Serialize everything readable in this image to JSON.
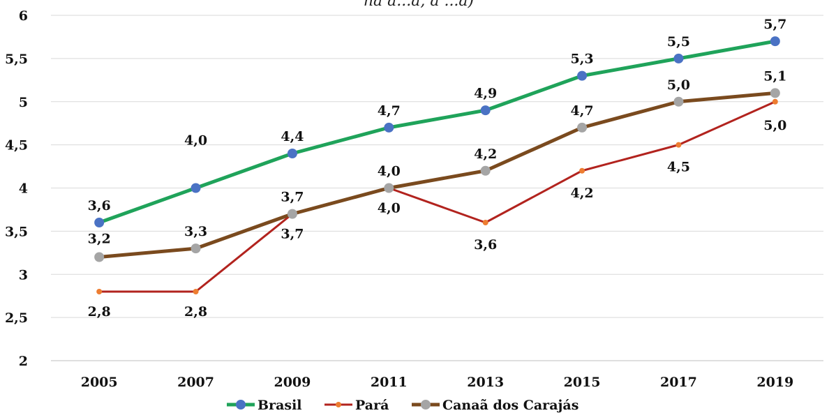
{
  "chart_data": {
    "type": "line",
    "title": "",
    "title_fragment": "na a...a, a ...a)",
    "xlabel": "",
    "ylabel": "",
    "categories": [
      "2005",
      "2007",
      "2009",
      "2011",
      "2013",
      "2015",
      "2017",
      "2019"
    ],
    "ylim": [
      2,
      6
    ],
    "yticks": [
      "2",
      "2,5",
      "3",
      "3,5",
      "4",
      "4,5",
      "5",
      "5,5",
      "6"
    ],
    "grid": true,
    "legend_position": "bottom",
    "series": [
      {
        "name": "Brasil",
        "color": "#1fa35a",
        "marker_color": "#4a72c4",
        "values": [
          3.6,
          4.0,
          4.4,
          4.7,
          4.9,
          5.3,
          5.5,
          5.7
        ],
        "labels": [
          "3,6",
          "4,0",
          "4,4",
          "4,7",
          "4,9",
          "5,3",
          "5,5",
          "5,7"
        ]
      },
      {
        "name": "Pará",
        "color": "#b2231e",
        "marker_color": "#ed7d31",
        "values": [
          2.8,
          2.8,
          3.7,
          4.0,
          3.6,
          4.2,
          4.5,
          5.0
        ],
        "labels": [
          "2,8",
          "2,8",
          "3,7",
          "4,0",
          "3,6",
          "4,2",
          "4,5",
          "5,0"
        ]
      },
      {
        "name": "Canaã dos Carajás",
        "color": "#7a4a1e",
        "marker_color": "#a5a5a5",
        "values": [
          3.2,
          3.3,
          3.7,
          4.0,
          4.2,
          4.7,
          5.0,
          5.1
        ],
        "labels": [
          "3,2",
          "3,3",
          "3,7",
          "4,0",
          "4,2",
          "4,7",
          "5,0",
          "5,1"
        ]
      }
    ]
  }
}
